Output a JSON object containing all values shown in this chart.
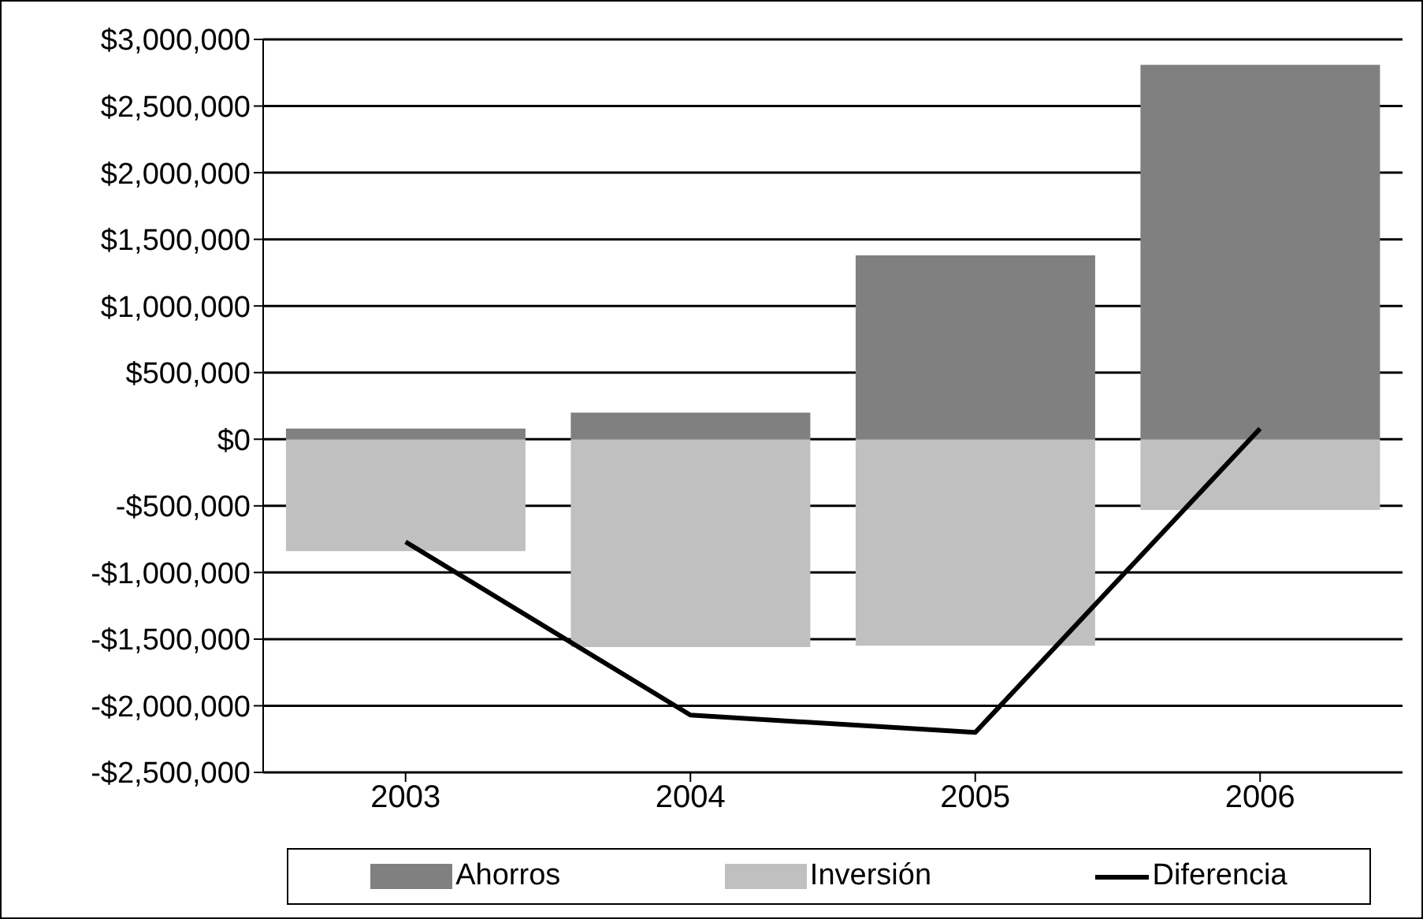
{
  "chart_data": {
    "type": "bar",
    "stacked": true,
    "categories": [
      "2003",
      "2004",
      "2005",
      "2006"
    ],
    "series": [
      {
        "name": "Ahorros",
        "color": "#808080",
        "values": [
          80000,
          200000,
          1380000,
          2810000
        ]
      },
      {
        "name": "Inversión",
        "color": "#c0c0c0",
        "values": [
          -840000,
          -1560000,
          -1550000,
          -530000
        ]
      },
      {
        "name": "Diferencia",
        "type": "line",
        "color": "#000000",
        "values": [
          -770000,
          -2070000,
          -2200000,
          80000
        ]
      }
    ],
    "ylim": [
      -2500000,
      3000000
    ],
    "yticks": [
      {
        "value": -2500000,
        "label": "-$2,500,000"
      },
      {
        "value": -2000000,
        "label": "-$2,000,000"
      },
      {
        "value": -1500000,
        "label": "-$1,500,000"
      },
      {
        "value": -1000000,
        "label": "-$1,000,000"
      },
      {
        "value": -500000,
        "label": "-$500,000"
      },
      {
        "value": 0,
        "label": "$0"
      },
      {
        "value": 500000,
        "label": "$500,000"
      },
      {
        "value": 1000000,
        "label": "$1,000,000"
      },
      {
        "value": 1500000,
        "label": "$1,500,000"
      },
      {
        "value": 2000000,
        "label": "$2,000,000"
      },
      {
        "value": 2500000,
        "label": "$2,500,000"
      },
      {
        "value": 3000000,
        "label": "$3,000,000"
      }
    ],
    "grid": "y",
    "legend": "bottom",
    "marker": "none"
  }
}
